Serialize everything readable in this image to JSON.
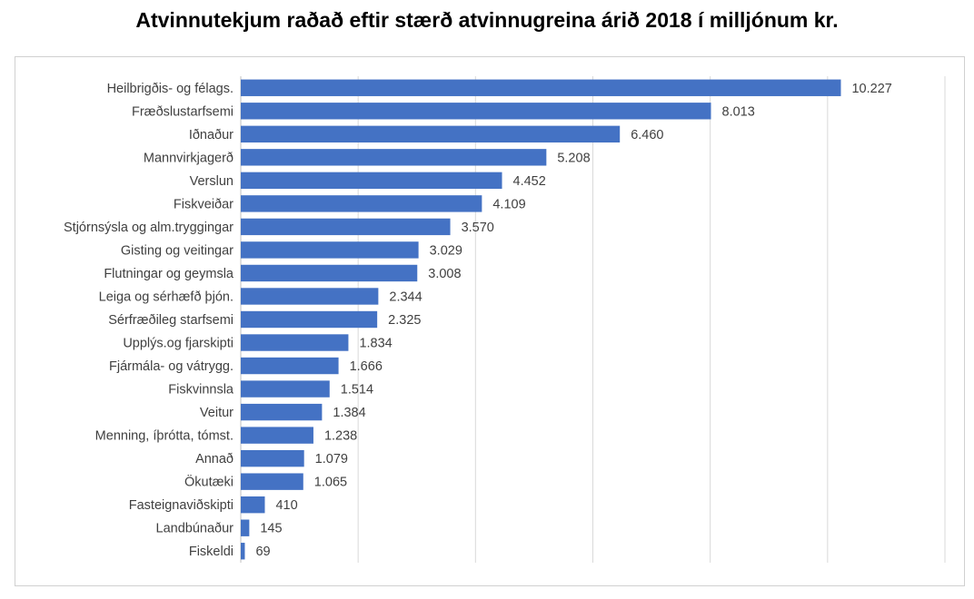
{
  "chart_data": {
    "type": "bar",
    "orientation": "horizontal",
    "title": "Atvinnutekjum raðað eftir stærð atvinnugreina árið 2018 í milljónum kr.",
    "categories": [
      "Heilbrigðis- og félags.",
      "Fræðslustarfsemi",
      "Iðnaður",
      "Mannvirkjagerð",
      "Verslun",
      "Fiskveiðar",
      "Stjórnsýsla og alm.tryggingar",
      "Gisting og veitingar",
      "Flutningar og geymsla",
      "Leiga og sérhæfð þjón.",
      "Sérfræðileg starfsemi",
      "Upplýs.og fjarskipti",
      "Fjármála- og vátrygg.",
      "Fiskvinnsla",
      "Veitur",
      "Menning, íþrótta, tómst.",
      "Annað",
      "Ökutæki",
      "Fasteignaviðskipti",
      "Landbúnaður",
      "Fiskeldi"
    ],
    "values": [
      10227,
      8013,
      6460,
      5208,
      4452,
      4109,
      3570,
      3029,
      3008,
      2344,
      2325,
      1834,
      1666,
      1514,
      1384,
      1238,
      1079,
      1065,
      410,
      145,
      69
    ],
    "value_labels": [
      "10.227",
      "8.013",
      "6.460",
      "5.208",
      "4.452",
      "4.109",
      "3.570",
      "3.029",
      "3.008",
      "2.344",
      "2.325",
      "1.834",
      "1.666",
      "1.514",
      "1.384",
      "1.238",
      "1.079",
      "1.065",
      "410",
      "145",
      "69"
    ],
    "xlim": [
      0,
      12000
    ],
    "grid": true,
    "bar_color": "#4472c4",
    "grid_color": "#d9d9d9"
  }
}
